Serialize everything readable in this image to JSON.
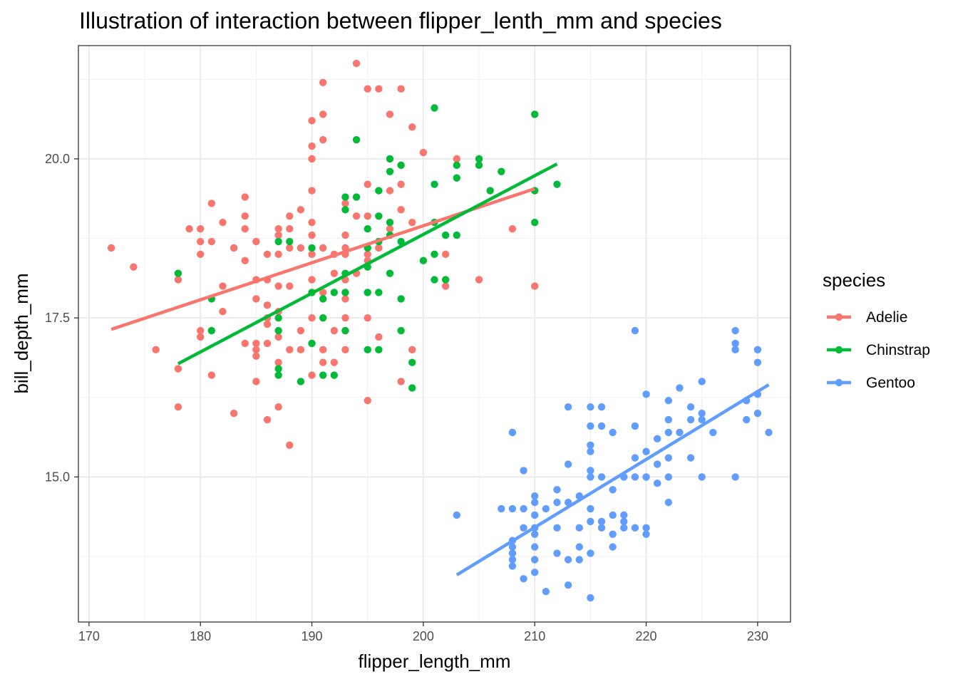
{
  "chart_data": {
    "type": "scatter",
    "title": "Illustration of interaction between flipper_lenth_mm and species",
    "xlabel": "flipper_length_mm",
    "ylabel": "bill_depth_mm",
    "xlim": [
      169.05,
      232.95
    ],
    "ylim": [
      12.72,
      21.78
    ],
    "x_ticks": [
      170,
      180,
      190,
      200,
      210,
      220,
      230
    ],
    "y_ticks": [
      15.0,
      17.5,
      20.0
    ],
    "x_tick_labels": [
      "170",
      "180",
      "190",
      "200",
      "210",
      "220",
      "230"
    ],
    "y_tick_labels": [
      "15.0",
      "17.5",
      "20.0"
    ],
    "grid": true,
    "legend": {
      "title": "species",
      "position": "right"
    },
    "series": [
      {
        "name": "Adelie",
        "color": "#F8766D",
        "fit": {
          "x": [
            172,
            210
          ],
          "y": [
            17.32,
            19.53
          ]
        },
        "points": [
          [
            172,
            18.6
          ],
          [
            174,
            18.3
          ],
          [
            176,
            17.0
          ],
          [
            178,
            18.1
          ],
          [
            178,
            16.7
          ],
          [
            178,
            16.1
          ],
          [
            179,
            18.9
          ],
          [
            180,
            18.9
          ],
          [
            180,
            18.7
          ],
          [
            180,
            18.5
          ],
          [
            180,
            17.3
          ],
          [
            180,
            17.2
          ],
          [
            181,
            19.3
          ],
          [
            181,
            18.7
          ],
          [
            181,
            16.6
          ],
          [
            182,
            19.0
          ],
          [
            182,
            18.0
          ],
          [
            182,
            17.6
          ],
          [
            183,
            18.6
          ],
          [
            183,
            16.0
          ],
          [
            184,
            19.4
          ],
          [
            184,
            19.1
          ],
          [
            184,
            18.9
          ],
          [
            184,
            18.4
          ],
          [
            184,
            17.1
          ],
          [
            185,
            18.7
          ],
          [
            185,
            18.1
          ],
          [
            185,
            17.8
          ],
          [
            185,
            17.1
          ],
          [
            185,
            17.0
          ],
          [
            185,
            16.9
          ],
          [
            185,
            16.5
          ],
          [
            186,
            18.5
          ],
          [
            186,
            18.1
          ],
          [
            186,
            17.7
          ],
          [
            186,
            17.5
          ],
          [
            186,
            17.4
          ],
          [
            186,
            17.1
          ],
          [
            186,
            15.9
          ],
          [
            187,
            18.9
          ],
          [
            187,
            18.8
          ],
          [
            187,
            18.5
          ],
          [
            187,
            18.0
          ],
          [
            187,
            17.6
          ],
          [
            187,
            17.2
          ],
          [
            187,
            16.8
          ],
          [
            187,
            16.1
          ],
          [
            188,
            19.1
          ],
          [
            188,
            18.9
          ],
          [
            188,
            18.6
          ],
          [
            188,
            18.0
          ],
          [
            188,
            17.0
          ],
          [
            188,
            15.5
          ],
          [
            189,
            19.2
          ],
          [
            189,
            18.6
          ],
          [
            189,
            17.3
          ],
          [
            189,
            17.0
          ],
          [
            190,
            20.6
          ],
          [
            190,
            20.2
          ],
          [
            190,
            20.0
          ],
          [
            190,
            19.5
          ],
          [
            190,
            19.0
          ],
          [
            190,
            18.8
          ],
          [
            190,
            18.5
          ],
          [
            190,
            18.1
          ],
          [
            190,
            17.5
          ],
          [
            190,
            16.6
          ],
          [
            191,
            21.2
          ],
          [
            191,
            20.7
          ],
          [
            191,
            20.3
          ],
          [
            191,
            18.6
          ],
          [
            191,
            17.9
          ],
          [
            191,
            17.0
          ],
          [
            191,
            16.8
          ],
          [
            192,
            18.5
          ],
          [
            192,
            18.2
          ],
          [
            192,
            17.3
          ],
          [
            192,
            16.8
          ],
          [
            193,
            19.3
          ],
          [
            193,
            18.8
          ],
          [
            193,
            18.6
          ],
          [
            193,
            18.5
          ],
          [
            193,
            18.1
          ],
          [
            193,
            17.8
          ],
          [
            193,
            17.5
          ],
          [
            193,
            17.3
          ],
          [
            193,
            17.0
          ],
          [
            194,
            21.5
          ],
          [
            194,
            19.1
          ],
          [
            194,
            18.2
          ],
          [
            195,
            21.1
          ],
          [
            195,
            19.6
          ],
          [
            195,
            19.1
          ],
          [
            195,
            18.5
          ],
          [
            195,
            18.4
          ],
          [
            195,
            17.5
          ],
          [
            195,
            16.2
          ],
          [
            196,
            21.1
          ],
          [
            196,
            18.6
          ],
          [
            196,
            17.2
          ],
          [
            197,
            20.7
          ],
          [
            197,
            19.5
          ],
          [
            197,
            18.9
          ],
          [
            198,
            21.1
          ],
          [
            198,
            19.6
          ],
          [
            198,
            19.2
          ],
          [
            198,
            16.5
          ],
          [
            199,
            20.5
          ],
          [
            199,
            19.0
          ],
          [
            199,
            17.0
          ],
          [
            200,
            20.1
          ],
          [
            202,
            18.5
          ],
          [
            202,
            18.0
          ],
          [
            203,
            20.0
          ],
          [
            205,
            18.1
          ],
          [
            208,
            18.9
          ],
          [
            210,
            19.5
          ],
          [
            210,
            18.0
          ]
        ]
      },
      {
        "name": "Chinstrap",
        "color": "#00BA38",
        "fit": {
          "x": [
            178,
            212
          ],
          "y": [
            16.78,
            19.92
          ]
        },
        "points": [
          [
            178,
            18.2
          ],
          [
            181,
            17.8
          ],
          [
            181,
            17.3
          ],
          [
            187,
            18.7
          ],
          [
            187,
            17.5
          ],
          [
            187,
            17.3
          ],
          [
            187,
            16.7
          ],
          [
            187,
            16.6
          ],
          [
            188,
            18.7
          ],
          [
            189,
            16.5
          ],
          [
            190,
            18.6
          ],
          [
            190,
            17.9
          ],
          [
            190,
            17.1
          ],
          [
            191,
            17.8
          ],
          [
            191,
            17.5
          ],
          [
            191,
            16.6
          ],
          [
            192,
            17.9
          ],
          [
            192,
            16.6
          ],
          [
            193,
            19.4
          ],
          [
            193,
            19.2
          ],
          [
            193,
            18.2
          ],
          [
            193,
            17.9
          ],
          [
            193,
            17.3
          ],
          [
            194,
            20.3
          ],
          [
            194,
            19.4
          ],
          [
            195,
            18.9
          ],
          [
            195,
            18.6
          ],
          [
            195,
            18.3
          ],
          [
            195,
            17.9
          ],
          [
            195,
            17.0
          ],
          [
            196,
            19.5
          ],
          [
            196,
            19.1
          ],
          [
            196,
            18.7
          ],
          [
            196,
            17.9
          ],
          [
            196,
            17.0
          ],
          [
            197,
            20.0
          ],
          [
            197,
            19.8
          ],
          [
            197,
            19.0
          ],
          [
            197,
            18.8
          ],
          [
            197,
            18.2
          ],
          [
            198,
            19.9
          ],
          [
            198,
            18.7
          ],
          [
            198,
            17.8
          ],
          [
            198,
            17.3
          ],
          [
            199,
            16.8
          ],
          [
            199,
            16.4
          ],
          [
            200,
            18.4
          ],
          [
            201,
            20.8
          ],
          [
            201,
            19.6
          ],
          [
            201,
            19.0
          ],
          [
            201,
            18.5
          ],
          [
            201,
            18.1
          ],
          [
            202,
            18.8
          ],
          [
            202,
            18.1
          ],
          [
            203,
            19.9
          ],
          [
            203,
            19.7
          ],
          [
            203,
            18.8
          ],
          [
            205,
            20.0
          ],
          [
            205,
            19.9
          ],
          [
            206,
            19.5
          ],
          [
            207,
            19.8
          ],
          [
            210,
            20.7
          ],
          [
            210,
            19.5
          ],
          [
            210,
            19.0
          ],
          [
            212,
            19.6
          ]
        ]
      },
      {
        "name": "Gentoo",
        "color": "#619CFF",
        "fit": {
          "x": [
            203,
            231
          ],
          "y": [
            13.46,
            16.45
          ]
        },
        "points": [
          [
            203,
            14.4
          ],
          [
            207,
            14.5
          ],
          [
            208,
            15.7
          ],
          [
            208,
            14.5
          ],
          [
            208,
            14.0
          ],
          [
            208,
            13.9
          ],
          [
            208,
            13.8
          ],
          [
            208,
            13.7
          ],
          [
            208,
            13.6
          ],
          [
            209,
            15.1
          ],
          [
            209,
            14.5
          ],
          [
            209,
            14.2
          ],
          [
            209,
            13.4
          ],
          [
            210,
            14.7
          ],
          [
            210,
            14.6
          ],
          [
            210,
            14.4
          ],
          [
            210,
            14.2
          ],
          [
            210,
            14.1
          ],
          [
            210,
            13.9
          ],
          [
            210,
            13.7
          ],
          [
            210,
            13.5
          ],
          [
            211,
            14.5
          ],
          [
            211,
            13.2
          ],
          [
            212,
            14.8
          ],
          [
            212,
            14.6
          ],
          [
            212,
            14.2
          ],
          [
            212,
            13.8
          ],
          [
            213,
            16.1
          ],
          [
            213,
            15.2
          ],
          [
            213,
            14.6
          ],
          [
            213,
            13.7
          ],
          [
            213,
            13.3
          ],
          [
            214,
            14.7
          ],
          [
            214,
            14.2
          ],
          [
            214,
            13.9
          ],
          [
            214,
            13.7
          ],
          [
            215,
            16.1
          ],
          [
            215,
            15.8
          ],
          [
            215,
            15.5
          ],
          [
            215,
            15.4
          ],
          [
            215,
            15.1
          ],
          [
            215,
            15.0
          ],
          [
            215,
            14.5
          ],
          [
            215,
            14.3
          ],
          [
            215,
            13.8
          ],
          [
            215,
            13.1
          ],
          [
            216,
            16.1
          ],
          [
            216,
            15.8
          ],
          [
            216,
            15.0
          ],
          [
            216,
            14.3
          ],
          [
            216,
            14.2
          ],
          [
            217,
            15.7
          ],
          [
            217,
            14.8
          ],
          [
            217,
            14.4
          ],
          [
            217,
            14.1
          ],
          [
            217,
            13.9
          ],
          [
            218,
            15.0
          ],
          [
            218,
            14.4
          ],
          [
            218,
            14.2
          ],
          [
            218,
            14.3
          ],
          [
            219,
            17.3
          ],
          [
            219,
            15.8
          ],
          [
            219,
            15.3
          ],
          [
            219,
            15.0
          ],
          [
            219,
            14.2
          ],
          [
            220,
            16.3
          ],
          [
            220,
            15.4
          ],
          [
            220,
            15.0
          ],
          [
            220,
            14.2
          ],
          [
            220,
            14.1
          ],
          [
            221,
            15.6
          ],
          [
            221,
            15.2
          ],
          [
            221,
            14.9
          ],
          [
            222,
            16.2
          ],
          [
            222,
            15.9
          ],
          [
            222,
            15.7
          ],
          [
            222,
            15.3
          ],
          [
            222,
            15.0
          ],
          [
            222,
            14.6
          ],
          [
            223,
            16.4
          ],
          [
            223,
            15.7
          ],
          [
            224,
            16.1
          ],
          [
            224,
            15.9
          ],
          [
            224,
            15.3
          ],
          [
            225,
            16.5
          ],
          [
            225,
            16.0
          ],
          [
            225,
            15.9
          ],
          [
            225,
            15.0
          ],
          [
            226,
            15.7
          ],
          [
            228,
            17.3
          ],
          [
            228,
            17.1
          ],
          [
            228,
            17.0
          ],
          [
            228,
            15.0
          ],
          [
            229,
            16.2
          ],
          [
            229,
            15.9
          ],
          [
            230,
            17.0
          ],
          [
            230,
            16.8
          ],
          [
            230,
            16.3
          ],
          [
            230,
            16.0
          ],
          [
            231,
            15.7
          ]
        ]
      }
    ]
  }
}
